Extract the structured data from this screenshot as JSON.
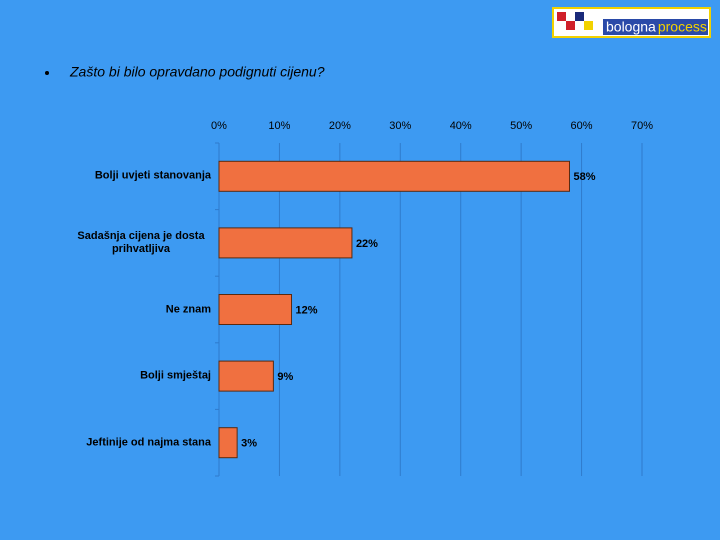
{
  "logo": {
    "brand": "bologna",
    "brand_suffix": "process"
  },
  "chart_data": {
    "type": "bar",
    "orientation": "horizontal",
    "title": "Zašto bi bilo opravdano podignuti cijenu?",
    "categories": [
      "Bolji uvjeti stanovanja",
      "Sadašnja cijena je dosta prihvatljiva",
      "Ne znam",
      "Bolji smještaj",
      "Jeftinije od najma stana"
    ],
    "values": [
      58,
      22,
      12,
      9,
      3
    ],
    "value_labels": [
      "58%",
      "22%",
      "12%",
      "9%",
      "3%"
    ],
    "color": "#f07040",
    "xlim": [
      0,
      70
    ],
    "xticks": [
      {
        "value": 0,
        "label": "0%"
      },
      {
        "value": 10,
        "label": "10%"
      },
      {
        "value": 20,
        "label": "20%"
      },
      {
        "value": 30,
        "label": "30%"
      },
      {
        "value": 40,
        "label": "40%"
      },
      {
        "value": 50,
        "label": "50%"
      },
      {
        "value": 60,
        "label": "60%"
      },
      {
        "value": 70,
        "label": "70%"
      }
    ],
    "grid": true
  }
}
